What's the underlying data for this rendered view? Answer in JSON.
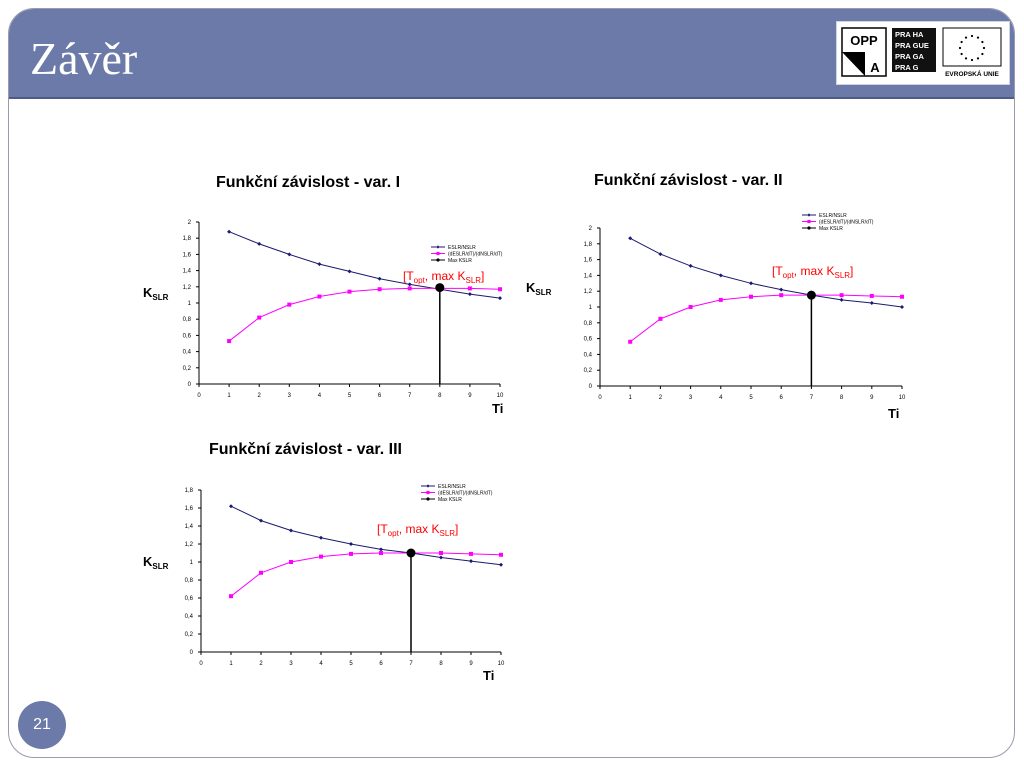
{
  "slide": {
    "title": "Závěr",
    "page_number": "21",
    "colors": {
      "header": "#6b7aa8",
      "series1": "#1a1a6e",
      "series2": "#ff00ff",
      "marker": "#000000",
      "annotation": "#ff0000"
    },
    "logos": {
      "opp_line1": "OPP",
      "opp_line2": "A",
      "praha_lines": [
        "PRA HA",
        "PRA GUE",
        "PRA GA",
        "PRA G"
      ],
      "eu_text": "EVROPSKÁ UNIE"
    }
  },
  "chart_data": [
    {
      "type": "line",
      "title": "Funkční závislost - var. I",
      "xlabel": "Ti",
      "ylabel_main": "K",
      "ylabel_sub": "SLR",
      "xlim": [
        0,
        10
      ],
      "ylim": [
        0,
        2
      ],
      "x_ticks": [
        "0",
        "1",
        "2",
        "3",
        "4",
        "5",
        "6",
        "7",
        "8",
        "9",
        "10"
      ],
      "y_ticks": [
        "0",
        "0,2",
        "0,4",
        "0,6",
        "0,8",
        "1",
        "1,2",
        "1,4",
        "1,6",
        "1,8",
        "2"
      ],
      "legend": [
        "ESLR/NSLR",
        "(dESLR/dT)/(dNSLR/dT)",
        "Max KSLR"
      ],
      "legend_position": "right",
      "series": [
        {
          "name": "ESLR/NSLR",
          "x": [
            1,
            2,
            3,
            4,
            5,
            6,
            7,
            8,
            9,
            10
          ],
          "values": [
            1.88,
            1.73,
            1.6,
            1.48,
            1.39,
            1.3,
            1.23,
            1.17,
            1.11,
            1.06
          ]
        },
        {
          "name": "(dESLR/dT)/(dNSLR/dT)",
          "x": [
            1,
            2,
            3,
            4,
            5,
            6,
            7,
            8,
            9,
            10
          ],
          "values": [
            0.53,
            0.82,
            0.98,
            1.08,
            1.14,
            1.17,
            1.18,
            1.18,
            1.18,
            1.17
          ]
        }
      ],
      "max_point": {
        "x": 8,
        "y": 1.19
      },
      "annotation": {
        "open": "[T",
        "sub1": "opt",
        "mid": ", max K",
        "sub2": "SLR",
        "close": "]"
      }
    },
    {
      "type": "line",
      "title": "Funkční závislost - var. II",
      "xlabel": "Ti",
      "ylabel_main": "K",
      "ylabel_sub": "SLR",
      "xlim": [
        0,
        10
      ],
      "ylim": [
        0,
        2
      ],
      "x_ticks": [
        "0",
        "1",
        "2",
        "3",
        "4",
        "5",
        "6",
        "7",
        "8",
        "9",
        "10"
      ],
      "y_ticks": [
        "0",
        "0,2",
        "0,4",
        "0,6",
        "0,8",
        "1",
        "1,2",
        "1,4",
        "1,6",
        "1,8",
        "2"
      ],
      "legend": [
        "ESLR/NSLR",
        "(dESLR/dT)/(dNSLR/dT)",
        "Max KSLR"
      ],
      "legend_position": "top-right",
      "series": [
        {
          "name": "ESLR/NSLR",
          "x": [
            1,
            2,
            3,
            4,
            5,
            6,
            7,
            8,
            9,
            10
          ],
          "values": [
            1.87,
            1.67,
            1.52,
            1.4,
            1.3,
            1.22,
            1.15,
            1.09,
            1.05,
            1.0
          ]
        },
        {
          "name": "(dESLR/dT)/(dNSLR/dT)",
          "x": [
            1,
            2,
            3,
            4,
            5,
            6,
            7,
            8,
            9,
            10
          ],
          "values": [
            0.56,
            0.85,
            1.0,
            1.09,
            1.13,
            1.15,
            1.15,
            1.15,
            1.14,
            1.13
          ]
        }
      ],
      "max_point": {
        "x": 7,
        "y": 1.15
      },
      "annotation": {
        "open": "[T",
        "sub1": "opt",
        "mid": ", max K",
        "sub2": "SLR",
        "close": "]"
      }
    },
    {
      "type": "line",
      "title": "Funkční závislost - var. III",
      "xlabel": "Ti",
      "ylabel_main": "K",
      "ylabel_sub": "SLR",
      "xlim": [
        0,
        10
      ],
      "ylim": [
        0,
        1.8
      ],
      "x_ticks": [
        "0",
        "1",
        "2",
        "3",
        "4",
        "5",
        "6",
        "7",
        "8",
        "9",
        "10"
      ],
      "y_ticks": [
        "0",
        "0,2",
        "0,4",
        "0,6",
        "0,8",
        "1",
        "1,2",
        "1,4",
        "1,6",
        "1,8"
      ],
      "legend": [
        "ESLR/NSLR",
        "(dESLR/dT)/(dNSLR/dT)",
        "Max KSLR"
      ],
      "legend_position": "top-right",
      "series": [
        {
          "name": "ESLR/NSLR",
          "x": [
            1,
            2,
            3,
            4,
            5,
            6,
            7,
            8,
            9,
            10
          ],
          "values": [
            1.62,
            1.46,
            1.35,
            1.27,
            1.2,
            1.14,
            1.1,
            1.05,
            1.01,
            0.97
          ]
        },
        {
          "name": "(dESLR/dT)/(dNSLR/dT)",
          "x": [
            1,
            2,
            3,
            4,
            5,
            6,
            7,
            8,
            9,
            10
          ],
          "values": [
            0.62,
            0.88,
            1.0,
            1.06,
            1.09,
            1.1,
            1.1,
            1.1,
            1.09,
            1.08
          ]
        }
      ],
      "max_point": {
        "x": 7,
        "y": 1.1
      },
      "annotation": {
        "open": "[T",
        "sub1": "opt",
        "mid": ", max K",
        "sub2": "SLR",
        "close": "]"
      }
    }
  ]
}
